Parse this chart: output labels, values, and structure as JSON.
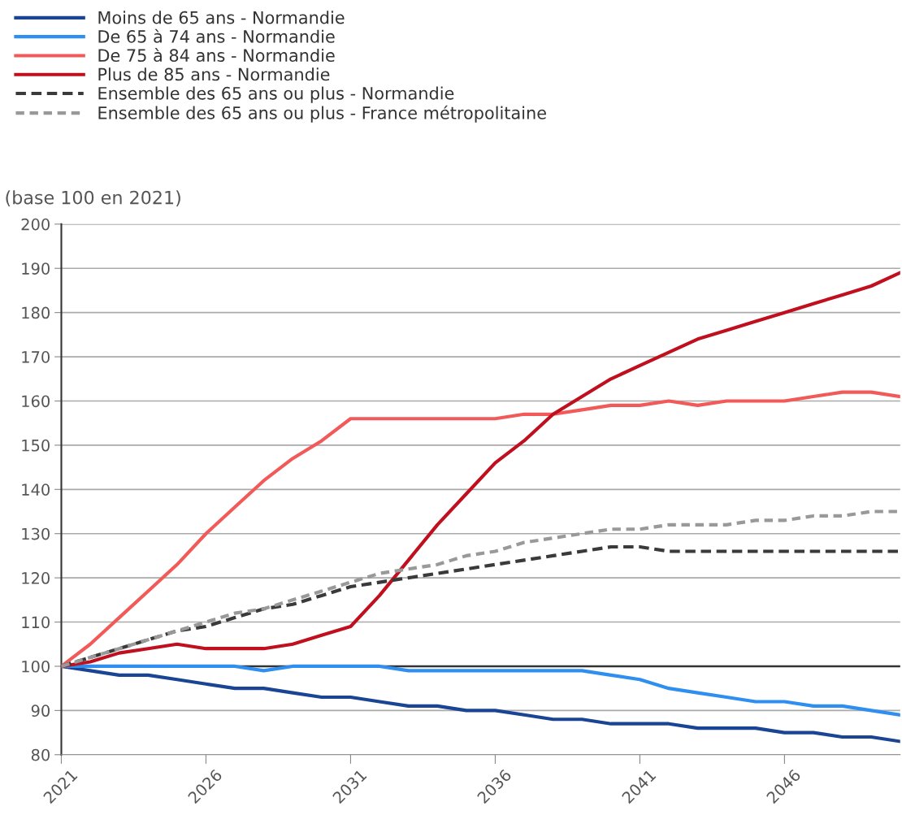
{
  "chart_data": {
    "type": "line",
    "ylabel": "(base 100 en 2021)",
    "x": [
      2021,
      2022,
      2023,
      2024,
      2025,
      2026,
      2027,
      2028,
      2029,
      2030,
      2031,
      2032,
      2033,
      2034,
      2035,
      2036,
      2037,
      2038,
      2039,
      2040,
      2041,
      2042,
      2043,
      2044,
      2045,
      2046,
      2047,
      2048,
      2049,
      2050
    ],
    "series": [
      {
        "name": "Moins de 65 ans - Normandie",
        "color": "#1a4595",
        "line_style": "solid",
        "values": [
          100,
          99,
          98,
          98,
          97,
          96,
          95,
          95,
          94,
          93,
          93,
          92,
          91,
          91,
          90,
          90,
          89,
          88,
          88,
          87,
          87,
          87,
          86,
          86,
          86,
          85,
          85,
          84,
          84,
          83
        ]
      },
      {
        "name": "De 65 à 74 ans - Normandie",
        "color": "#2e8ff0",
        "line_style": "solid",
        "values": [
          100,
          100,
          100,
          100,
          100,
          100,
          100,
          99,
          100,
          100,
          100,
          100,
          99,
          99,
          99,
          99,
          99,
          99,
          99,
          98,
          97,
          95,
          94,
          93,
          92,
          92,
          91,
          91,
          90,
          89
        ]
      },
      {
        "name": "De 75 à 84 ans - Normandie",
        "color": "#f25a5a",
        "line_style": "solid",
        "values": [
          100,
          105,
          111,
          117,
          123,
          130,
          136,
          142,
          147,
          151,
          156,
          156,
          156,
          156,
          156,
          156,
          157,
          157,
          158,
          159,
          159,
          160,
          159,
          160,
          160,
          160,
          161,
          162,
          162,
          161
        ]
      },
      {
        "name": "Plus de 85 ans - Normandie",
        "color": "#c0101f",
        "line_style": "solid",
        "values": [
          100,
          101,
          103,
          104,
          105,
          104,
          104,
          104,
          105,
          107,
          109,
          116,
          124,
          132,
          139,
          146,
          151,
          157,
          161,
          165,
          168,
          171,
          174,
          176,
          178,
          180,
          182,
          184,
          186,
          189
        ]
      },
      {
        "name": "Ensemble des 65 ans ou plus - Normandie",
        "color": "#3a3a3a",
        "line_style": "dashed",
        "values": [
          100,
          102,
          104,
          106,
          108,
          109,
          111,
          113,
          114,
          116,
          118,
          119,
          120,
          121,
          122,
          123,
          124,
          125,
          126,
          127,
          127,
          126,
          126,
          126,
          126,
          126,
          126,
          126,
          126,
          126
        ]
      },
      {
        "name": "Ensemble des 65 ans ou plus - France métropolitaine",
        "color": "#999999",
        "line_style": "dashed",
        "values": [
          100,
          102,
          104,
          106,
          108,
          110,
          112,
          113,
          115,
          117,
          119,
          121,
          122,
          123,
          125,
          126,
          128,
          129,
          130,
          131,
          131,
          132,
          132,
          132,
          133,
          133,
          134,
          134,
          135,
          135
        ]
      }
    ],
    "xlim": [
      2021,
      2050
    ],
    "xticks": [
      2021,
      2026,
      2031,
      2036,
      2041,
      2046
    ],
    "ylim": [
      80,
      200
    ],
    "yticks": [
      80,
      90,
      100,
      110,
      120,
      130,
      140,
      150,
      160,
      170,
      180,
      190,
      200
    ],
    "ref_lines": [
      {
        "axis": "y",
        "value": 100,
        "label": null,
        "color": "#333333"
      }
    ],
    "grid": "y",
    "legend": "top left",
    "marker": "none"
  }
}
